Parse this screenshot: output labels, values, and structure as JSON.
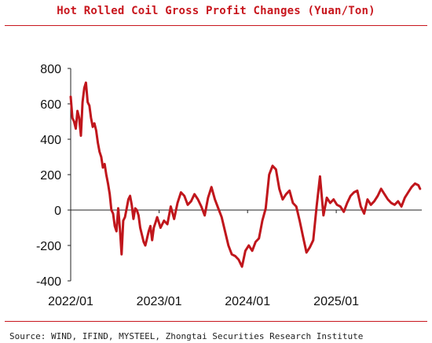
{
  "title": "Hot Rolled Coil Gross Profit Changes (Yuan/Ton)",
  "source": "Source: WIND, IFIND, MYSTEEL, Zhongtai Securities Research Institute",
  "chart_data": {
    "type": "line",
    "title": "Hot Rolled Coil Gross Profit Changes (Yuan/Ton)",
    "xlabel": "",
    "ylabel": "",
    "ylim": [
      -400,
      800
    ],
    "yticks": [
      800,
      600,
      400,
      200,
      0,
      -200,
      -400
    ],
    "ytick_labels": [
      "800",
      "600",
      "400",
      "200",
      "0",
      "-200",
      "-400"
    ],
    "xticks": [
      "2022-01",
      "2023-01",
      "2024-01",
      "2025-01"
    ],
    "xtick_labels": [
      "2022/01",
      "2023/01",
      "2024/01",
      "2025/01"
    ],
    "xlim": [
      "2022-01-01",
      "2025-12-20"
    ],
    "grid": false,
    "legend": "none",
    "color": "#c0161c",
    "series": [
      {
        "name": "",
        "x": [
          "2022-01-01",
          "2022-01-08",
          "2022-01-15",
          "2022-01-22",
          "2022-01-29",
          "2022-02-05",
          "2022-02-12",
          "2022-02-19",
          "2022-02-26",
          "2022-03-05",
          "2022-03-12",
          "2022-03-19",
          "2022-03-26",
          "2022-04-02",
          "2022-04-09",
          "2022-04-16",
          "2022-04-23",
          "2022-04-30",
          "2022-05-07",
          "2022-05-14",
          "2022-05-21",
          "2022-05-28",
          "2022-06-04",
          "2022-06-11",
          "2022-06-18",
          "2022-06-25",
          "2022-07-02",
          "2022-07-09",
          "2022-07-16",
          "2022-07-23",
          "2022-07-30",
          "2022-08-06",
          "2022-08-13",
          "2022-08-20",
          "2022-08-27",
          "2022-09-03",
          "2022-09-10",
          "2022-09-17",
          "2022-09-24",
          "2022-10-01",
          "2022-10-08",
          "2022-10-15",
          "2022-10-22",
          "2022-10-29",
          "2022-11-05",
          "2022-11-12",
          "2022-11-19",
          "2022-11-26",
          "2022-12-03",
          "2022-12-10",
          "2022-12-17",
          "2022-12-24",
          "2023-01-07",
          "2023-01-21",
          "2023-02-04",
          "2023-02-18",
          "2023-03-04",
          "2023-03-18",
          "2023-04-01",
          "2023-04-15",
          "2023-04-29",
          "2023-05-13",
          "2023-05-27",
          "2023-06-10",
          "2023-06-24",
          "2023-07-08",
          "2023-07-22",
          "2023-08-05",
          "2023-08-19",
          "2023-09-02",
          "2023-09-16",
          "2023-09-30",
          "2023-10-14",
          "2023-10-28",
          "2023-11-11",
          "2023-11-25",
          "2023-12-09",
          "2023-12-23",
          "2024-01-06",
          "2024-01-20",
          "2024-02-03",
          "2024-02-17",
          "2024-03-02",
          "2024-03-16",
          "2024-03-30",
          "2024-04-13",
          "2024-04-27",
          "2024-05-11",
          "2024-05-25",
          "2024-06-08",
          "2024-06-22",
          "2024-07-06",
          "2024-07-20",
          "2024-08-03",
          "2024-08-17",
          "2024-08-31",
          "2024-09-14",
          "2024-09-28",
          "2024-10-12",
          "2024-10-26",
          "2024-11-09",
          "2024-11-23",
          "2024-12-07",
          "2024-12-21",
          "2025-01-04",
          "2025-01-18",
          "2025-02-01",
          "2025-02-15",
          "2025-03-01",
          "2025-03-15",
          "2025-03-29",
          "2025-04-12",
          "2025-04-26",
          "2025-05-10",
          "2025-05-24",
          "2025-06-07",
          "2025-06-21",
          "2025-07-05",
          "2025-07-19",
          "2025-08-02",
          "2025-08-16",
          "2025-08-30",
          "2025-09-13",
          "2025-09-27",
          "2025-10-11",
          "2025-10-25",
          "2025-11-08",
          "2025-11-22",
          "2025-12-06",
          "2025-12-13"
        ],
        "values": [
          640,
          520,
          500,
          460,
          560,
          520,
          420,
          610,
          690,
          720,
          610,
          590,
          520,
          470,
          490,
          450,
          380,
          330,
          300,
          240,
          260,
          200,
          150,
          90,
          0,
          -20,
          -90,
          -120,
          10,
          -100,
          -250,
          -60,
          -40,
          10,
          60,
          80,
          30,
          -50,
          10,
          0,
          -30,
          -100,
          -140,
          -180,
          -200,
          -160,
          -120,
          -90,
          -170,
          -100,
          -70,
          -40,
          -100,
          -60,
          -80,
          20,
          -50,
          40,
          100,
          80,
          30,
          50,
          90,
          60,
          20,
          -30,
          70,
          130,
          60,
          10,
          -40,
          -120,
          -200,
          -250,
          -260,
          -280,
          -320,
          -230,
          -200,
          -230,
          -180,
          -160,
          -60,
          10,
          200,
          250,
          230,
          120,
          60,
          90,
          110,
          40,
          20,
          -60,
          -150,
          -240,
          -210,
          -170,
          20,
          190,
          -30,
          70,
          40,
          60,
          30,
          20,
          -10,
          40,
          80,
          100,
          110,
          20,
          -20,
          60,
          30,
          50,
          80,
          120,
          90,
          60,
          40,
          30,
          50,
          20,
          70,
          100,
          130,
          150,
          140,
          120
        ]
      }
    ]
  }
}
